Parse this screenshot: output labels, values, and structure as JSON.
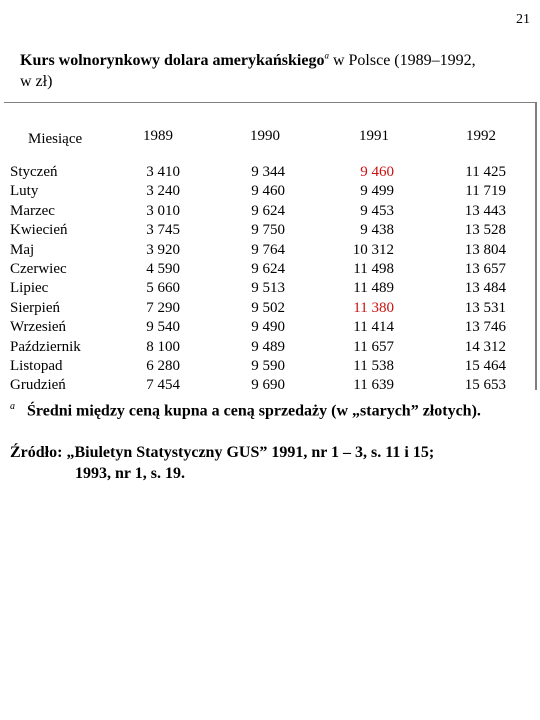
{
  "page_number": "21",
  "title": {
    "part1": "Kurs wolnorynkowy dolara amerykańskiego",
    "sup": "a",
    "part2": " w Polsce (1989–1992,",
    "part3": "w zł)"
  },
  "table": {
    "headers": [
      "Miesiące",
      "1989",
      "1990",
      "1991",
      "1992"
    ],
    "months": [
      "Styczeń",
      "Luty",
      "Marzec",
      "Kwiecień",
      "Maj",
      "Czerwiec",
      "Lipiec",
      "Sierpień",
      "Wrzesień",
      "Październik",
      "Listopad",
      "Grudzień"
    ],
    "col_1989": [
      "3 410",
      "3 240",
      "3 010",
      "3 745",
      "3 920",
      "4 590",
      "5 660",
      "7 290",
      "9 540",
      "8 100",
      "6 280",
      "7 454"
    ],
    "col_1990": [
      "9 344",
      "9 460",
      "9 624",
      "9 750",
      "9 764",
      "9 624",
      "9 513",
      "9 502",
      "9 490",
      "9 489",
      "9 590",
      "9 690"
    ],
    "col_1991": [
      "9 460",
      "9 499",
      "9 453",
      "9 438",
      "10 312",
      "11 498",
      "11 489",
      "11 380",
      "11 414",
      "11 657",
      "11 538",
      "11 639"
    ],
    "col_1992": [
      "11 425",
      "11 719",
      "13 443",
      "13 528",
      "13 804",
      "13 657",
      "13 484",
      "13 531",
      "13 746",
      "14 312",
      "15 464",
      "15 653"
    ],
    "highlight_color": "#cc1111",
    "highlighted_1991_rows": [
      0,
      7
    ]
  },
  "footnote": {
    "mark": "a",
    "text": "Średni między ceną kupna a ceną sprzedaży (w „starych” złotych)."
  },
  "source": {
    "line1": "Źródło: „Biuletyn Statystyczny GUS” 1991, nr 1 – 3, s. 11 i 15;",
    "line2": "1993, nr 1, s. 19."
  }
}
